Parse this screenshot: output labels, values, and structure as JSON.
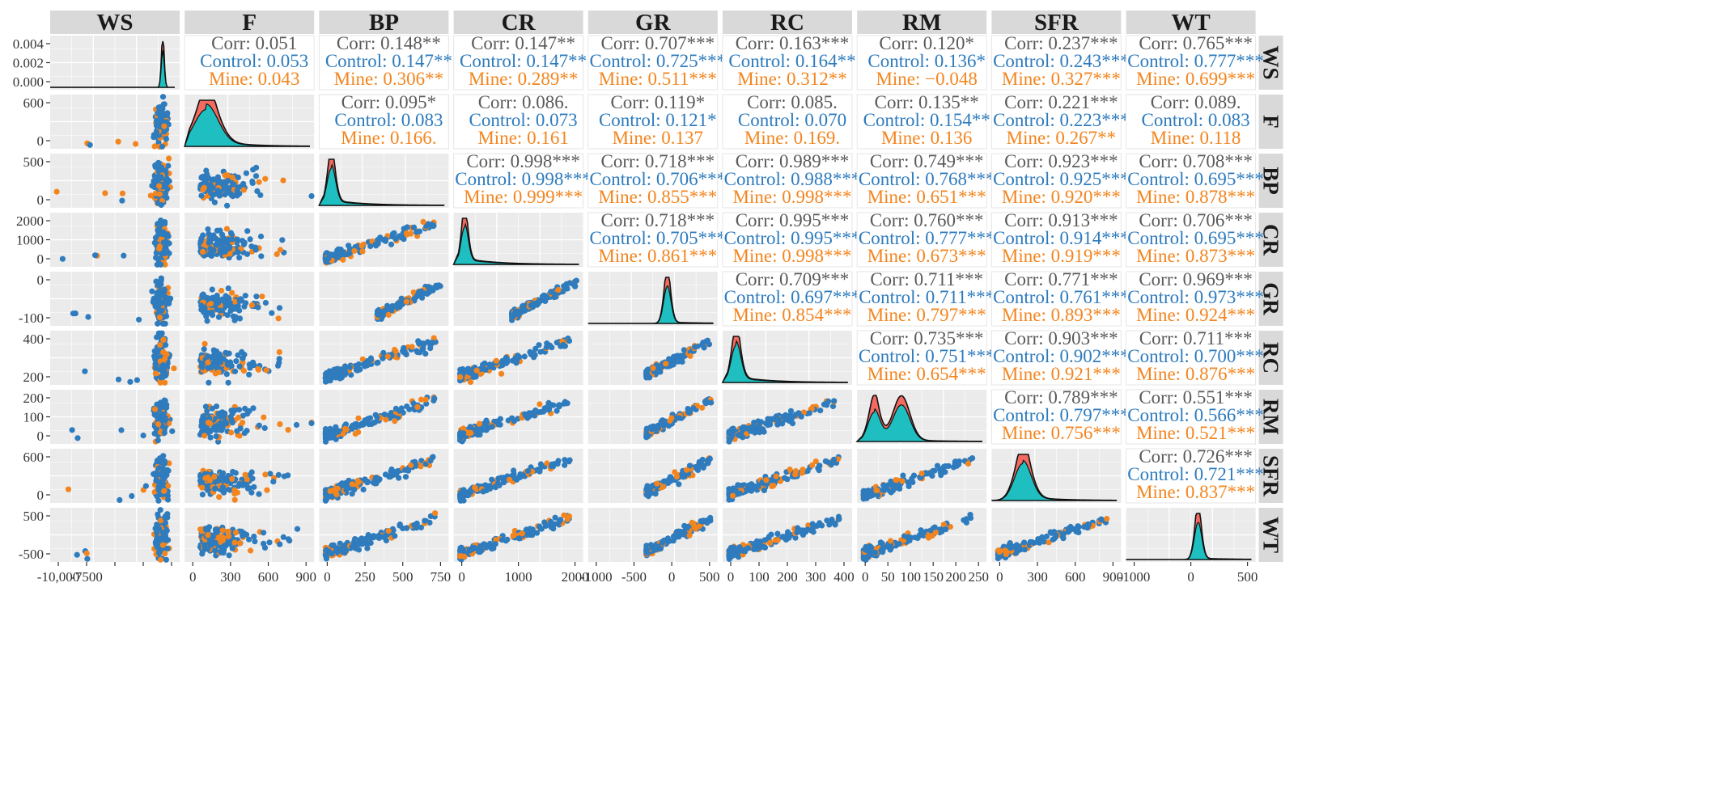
{
  "chart_data": {
    "type": "scatter",
    "title": "",
    "variables": [
      "WS",
      "F",
      "BP",
      "CR",
      "GR",
      "RC",
      "RM",
      "SFR",
      "WT"
    ],
    "groups": [
      {
        "name": "Control",
        "color": "#2e7bbd"
      },
      {
        "name": "Mine",
        "color": "#f3851f"
      }
    ],
    "density_colors": {
      "Control": "#1fbfc1",
      "Mine": "#f26a60"
    },
    "corr_labels": {
      "total": "Corr:",
      "Control": "Control:",
      "Mine": "Mine:"
    },
    "x_ticks": [
      [
        "-10,000",
        "-7500",
        "",
        "",
        ""
      ],
      [
        "0",
        "300",
        "600",
        "900"
      ],
      [
        "0",
        "250",
        "500",
        "750"
      ],
      [
        "0",
        "1000",
        "2000"
      ],
      [
        "-1000",
        "-500",
        "0",
        "500"
      ],
      [
        "0",
        "100",
        "200",
        "300",
        "400"
      ],
      [
        "0",
        "50",
        "100",
        "150",
        "200",
        "250"
      ],
      [
        "0",
        "300",
        "600",
        "900"
      ],
      [
        "-1000",
        "0",
        "500"
      ]
    ],
    "y_ticks": [
      [
        "0.004",
        "0.002",
        "0.000"
      ],
      [
        "600",
        "0"
      ],
      [
        "500",
        "0"
      ],
      [
        "2000",
        "1000",
        "0"
      ],
      [
        "0",
        "-100"
      ],
      [
        "400",
        "200"
      ],
      [
        "200",
        "100",
        "0"
      ],
      [
        "600",
        "0"
      ],
      [
        "500",
        "-500"
      ]
    ],
    "correlations": [
      {
        "row": "WS",
        "col": "F",
        "corr": "0.051",
        "control": "0.053",
        "mine": "0.043"
      },
      {
        "row": "WS",
        "col": "BP",
        "corr": "0.148**",
        "control": "0.147**",
        "mine": "0.306**"
      },
      {
        "row": "WS",
        "col": "CR",
        "corr": "0.147**",
        "control": "0.147**",
        "mine": "0.289**"
      },
      {
        "row": "WS",
        "col": "GR",
        "corr": "0.707***",
        "control": "0.725***",
        "mine": "0.511***"
      },
      {
        "row": "WS",
        "col": "RC",
        "corr": "0.163***",
        "control": "0.164**",
        "mine": "0.312**"
      },
      {
        "row": "WS",
        "col": "RM",
        "corr": "0.120*",
        "control": "0.136*",
        "mine": "−0.048"
      },
      {
        "row": "WS",
        "col": "SFR",
        "corr": "0.237***",
        "control": "0.243***",
        "mine": "0.327***"
      },
      {
        "row": "WS",
        "col": "WT",
        "corr": "0.765***",
        "control": "0.777***",
        "mine": "0.699***"
      },
      {
        "row": "F",
        "col": "BP",
        "corr": "0.095*",
        "control": "0.083",
        "mine": "0.166."
      },
      {
        "row": "F",
        "col": "CR",
        "corr": "0.086.",
        "control": "0.073",
        "mine": "0.161"
      },
      {
        "row": "F",
        "col": "GR",
        "corr": "0.119*",
        "control": "0.121*",
        "mine": "0.137"
      },
      {
        "row": "F",
        "col": "RC",
        "corr": "0.085.",
        "control": "0.070",
        "mine": "0.169."
      },
      {
        "row": "F",
        "col": "RM",
        "corr": "0.135**",
        "control": "0.154**",
        "mine": "0.136"
      },
      {
        "row": "F",
        "col": "SFR",
        "corr": "0.221***",
        "control": "0.223***",
        "mine": "0.267**"
      },
      {
        "row": "F",
        "col": "WT",
        "corr": "0.089.",
        "control": "0.083",
        "mine": "0.118"
      },
      {
        "row": "BP",
        "col": "CR",
        "corr": "0.998***",
        "control": "0.998***",
        "mine": "0.999***"
      },
      {
        "row": "BP",
        "col": "GR",
        "corr": "0.718***",
        "control": "0.706***",
        "mine": "0.855***"
      },
      {
        "row": "BP",
        "col": "RC",
        "corr": "0.989***",
        "control": "0.988***",
        "mine": "0.998***"
      },
      {
        "row": "BP",
        "col": "RM",
        "corr": "0.749***",
        "control": "0.768***",
        "mine": "0.651***"
      },
      {
        "row": "BP",
        "col": "SFR",
        "corr": "0.923***",
        "control": "0.925***",
        "mine": "0.920***"
      },
      {
        "row": "BP",
        "col": "WT",
        "corr": "0.708***",
        "control": "0.695***",
        "mine": "0.878***"
      },
      {
        "row": "CR",
        "col": "GR",
        "corr": "0.718***",
        "control": "0.705***",
        "mine": "0.861***"
      },
      {
        "row": "CR",
        "col": "RC",
        "corr": "0.995***",
        "control": "0.995***",
        "mine": "0.998***"
      },
      {
        "row": "CR",
        "col": "RM",
        "corr": "0.760***",
        "control": "0.777***",
        "mine": "0.673***"
      },
      {
        "row": "CR",
        "col": "SFR",
        "corr": "0.913***",
        "control": "0.914***",
        "mine": "0.919***"
      },
      {
        "row": "CR",
        "col": "WT",
        "corr": "0.706***",
        "control": "0.695***",
        "mine": "0.873***"
      },
      {
        "row": "GR",
        "col": "RC",
        "corr": "0.709***",
        "control": "0.697***",
        "mine": "0.854***"
      },
      {
        "row": "GR",
        "col": "RM",
        "corr": "0.711***",
        "control": "0.711***",
        "mine": "0.797***"
      },
      {
        "row": "GR",
        "col": "SFR",
        "corr": "0.771***",
        "control": "0.761***",
        "mine": "0.893***"
      },
      {
        "row": "GR",
        "col": "WT",
        "corr": "0.969***",
        "control": "0.973***",
        "mine": "0.924***"
      },
      {
        "row": "RC",
        "col": "RM",
        "corr": "0.735***",
        "control": "0.751***",
        "mine": "0.654***"
      },
      {
        "row": "RC",
        "col": "SFR",
        "corr": "0.903***",
        "control": "0.902***",
        "mine": "0.921***"
      },
      {
        "row": "RC",
        "col": "WT",
        "corr": "0.711***",
        "control": "0.700***",
        "mine": "0.876***"
      },
      {
        "row": "RM",
        "col": "SFR",
        "corr": "0.789***",
        "control": "0.797***",
        "mine": "0.756***"
      },
      {
        "row": "RM",
        "col": "WT",
        "corr": "0.551***",
        "control": "0.566***",
        "mine": "0.521***"
      },
      {
        "row": "SFR",
        "col": "WT",
        "corr": "0.726***",
        "control": "0.721***",
        "mine": "0.837***"
      }
    ]
  }
}
